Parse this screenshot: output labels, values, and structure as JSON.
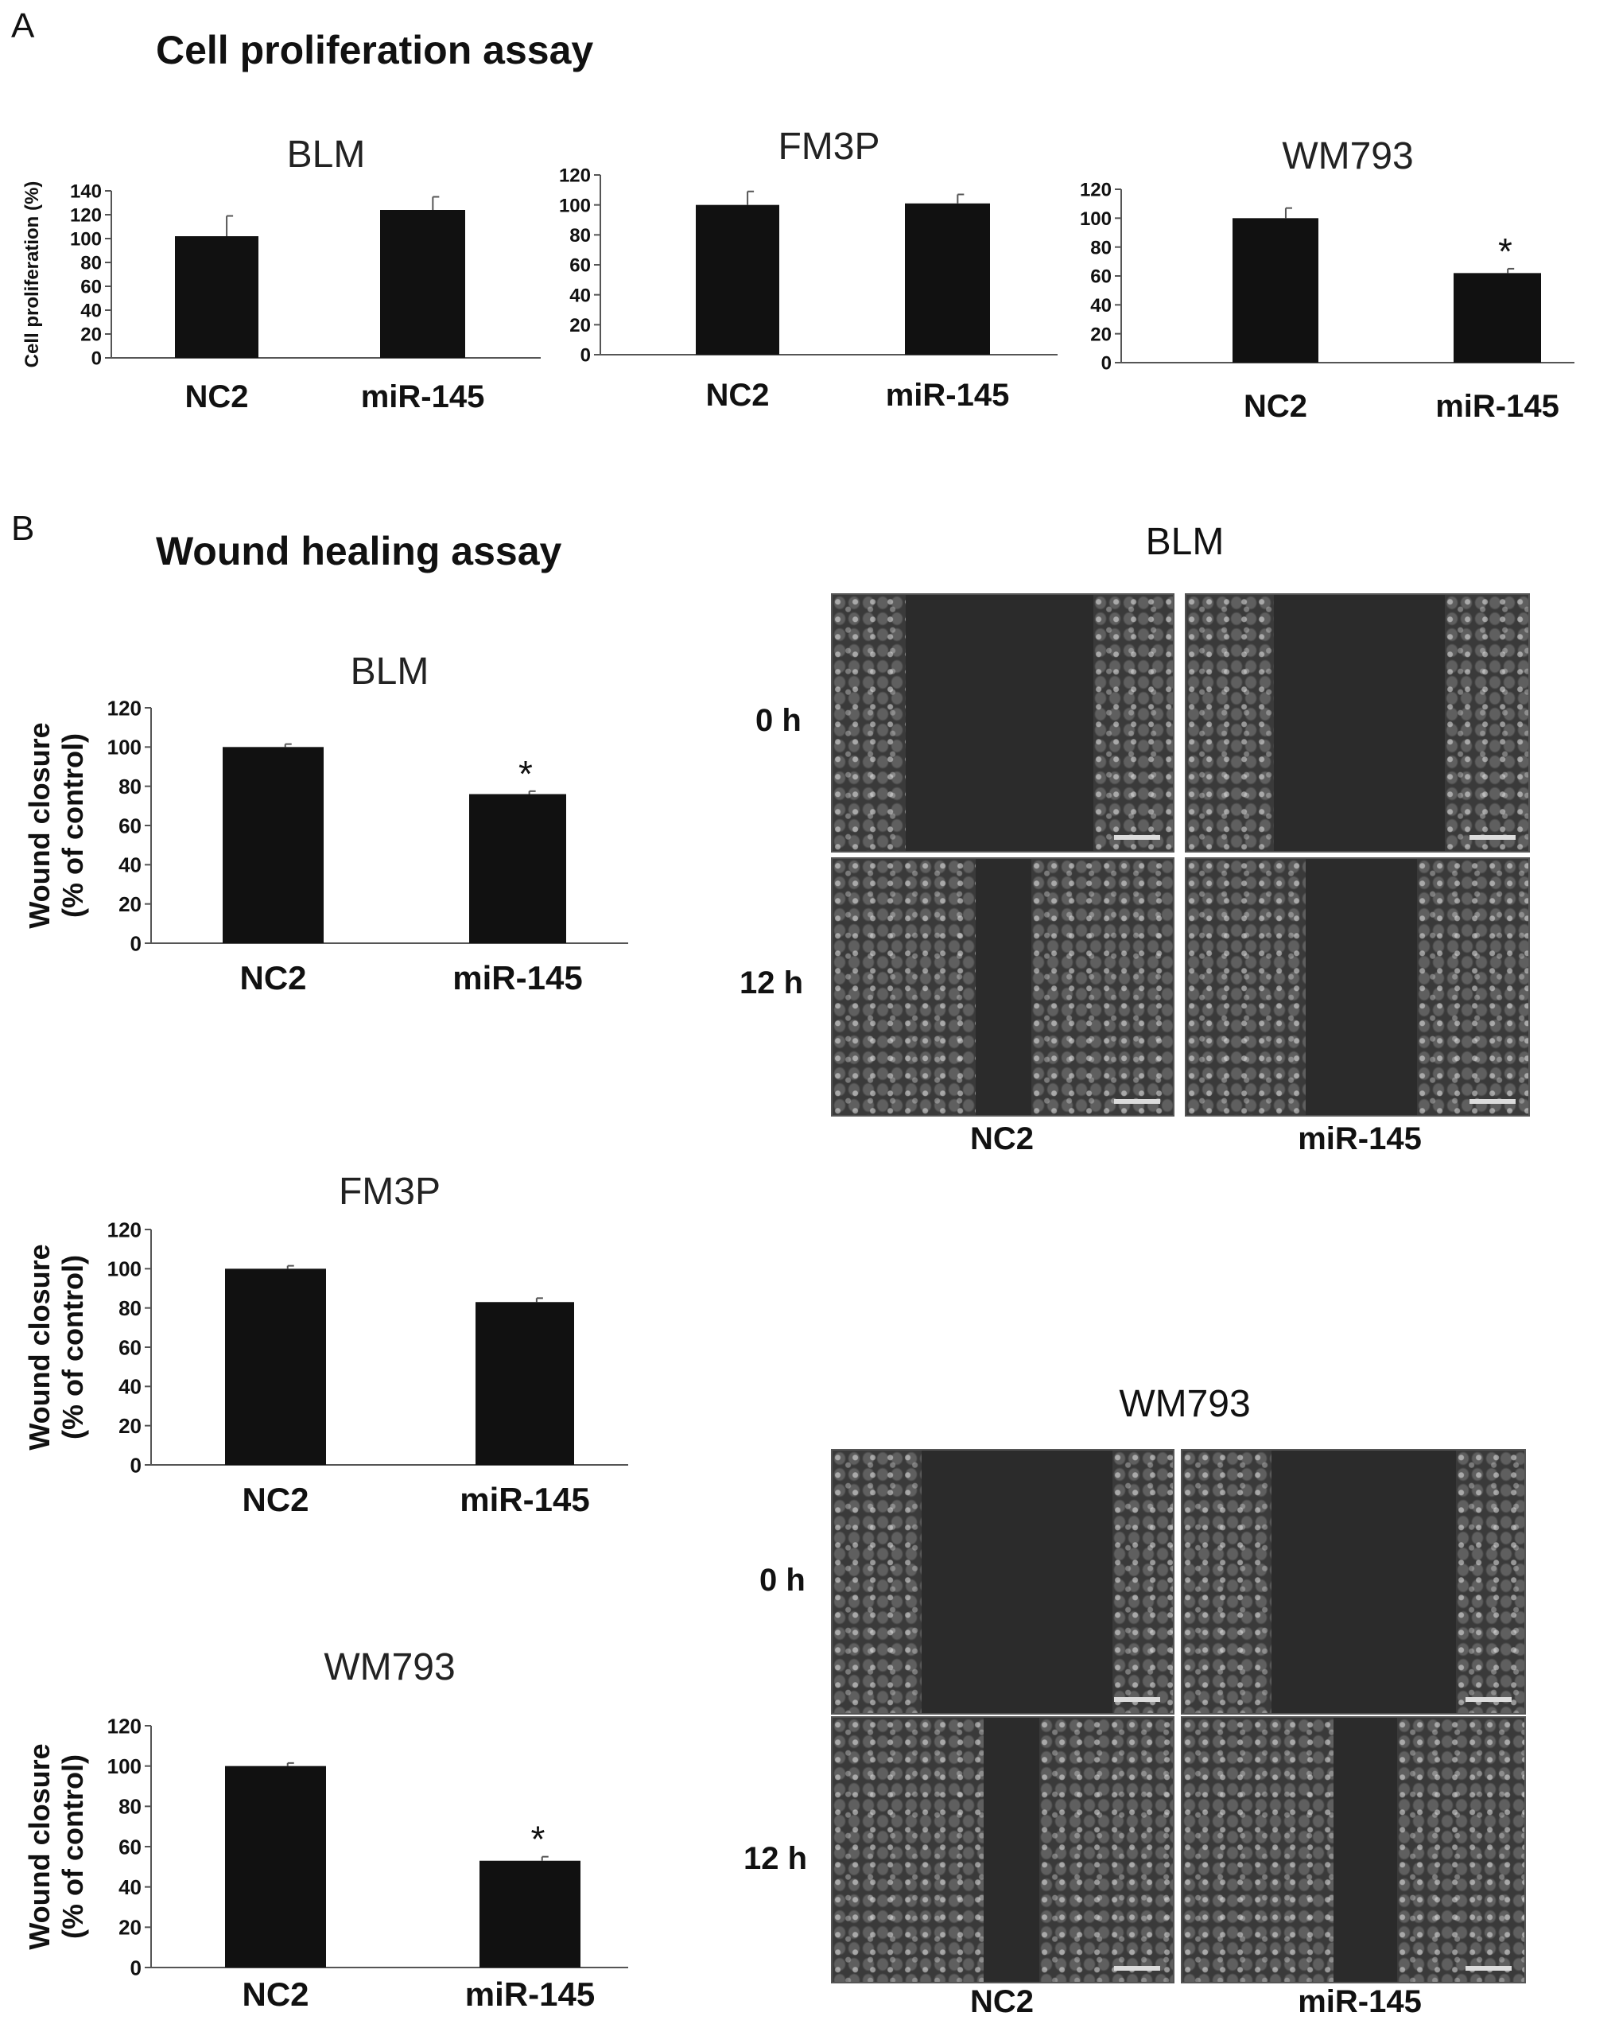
{
  "panel_a": {
    "letter": "A",
    "title": "Cell proliferation assay"
  },
  "panel_b": {
    "letter": "B",
    "title": "Wound healing assay"
  },
  "chart_data": [
    {
      "id": "prolif-blm",
      "type": "bar",
      "title": "BLM",
      "categories": [
        "NC2",
        "miR-145"
      ],
      "values": [
        102,
        124
      ],
      "errors": [
        17,
        11
      ],
      "ylabel": "Cell proliferation (%)",
      "ylim": [
        0,
        140
      ],
      "yticks": [
        0,
        20,
        40,
        60,
        80,
        100,
        120,
        140
      ],
      "significance": [
        "",
        ""
      ]
    },
    {
      "id": "prolif-fm3p",
      "type": "bar",
      "title": "FM3P",
      "categories": [
        "NC2",
        "miR-145"
      ],
      "values": [
        100,
        101
      ],
      "errors": [
        9,
        6
      ],
      "ylabel": "",
      "ylim": [
        0,
        120
      ],
      "yticks": [
        0,
        20,
        40,
        60,
        80,
        100,
        120
      ],
      "significance": [
        "",
        ""
      ]
    },
    {
      "id": "prolif-wm793",
      "type": "bar",
      "title": "WM793",
      "categories": [
        "NC2",
        "miR-145"
      ],
      "values": [
        100,
        62
      ],
      "errors": [
        7,
        3
      ],
      "ylabel": "",
      "ylim": [
        0,
        120
      ],
      "yticks": [
        0,
        20,
        40,
        60,
        80,
        100,
        120
      ],
      "significance": [
        "",
        "*"
      ]
    },
    {
      "id": "wound-blm",
      "type": "bar",
      "title": "BLM",
      "categories": [
        "NC2",
        "miR-145"
      ],
      "values": [
        100,
        76
      ],
      "errors": [
        1.5,
        1.5
      ],
      "ylabel": "Wound closure (% of control)",
      "ylabel_lines": [
        "Wound closure",
        "(% of control)"
      ],
      "ylim": [
        0,
        120
      ],
      "yticks": [
        0,
        20,
        40,
        60,
        80,
        100,
        120
      ],
      "significance": [
        "",
        "*"
      ]
    },
    {
      "id": "wound-fm3p",
      "type": "bar",
      "title": "FM3P",
      "categories": [
        "NC2",
        "miR-145"
      ],
      "values": [
        100,
        83
      ],
      "errors": [
        1.5,
        2
      ],
      "ylabel": "Wound closure (% of control)",
      "ylabel_lines": [
        "Wound closure",
        "(% of control)"
      ],
      "ylim": [
        0,
        120
      ],
      "yticks": [
        0,
        20,
        40,
        60,
        80,
        100,
        120
      ],
      "significance": [
        "",
        ""
      ]
    },
    {
      "id": "wound-wm793",
      "type": "bar",
      "title": "WM793",
      "categories": [
        "NC2",
        "miR-145"
      ],
      "values": [
        100,
        53
      ],
      "errors": [
        1.5,
        2
      ],
      "ylabel": "Wound closure (% of control)",
      "ylabel_lines": [
        "Wound closure",
        "(% of control)"
      ],
      "ylim": [
        0,
        120
      ],
      "yticks": [
        0,
        20,
        40,
        60,
        80,
        100,
        120
      ],
      "significance": [
        "",
        "*"
      ]
    }
  ],
  "micrographs": {
    "blm": {
      "title": "BLM",
      "rows": [
        "0 h",
        "12 h"
      ],
      "cols": [
        "NC2",
        "miR-145"
      ]
    },
    "wm793": {
      "title": "WM793",
      "rows": [
        "0 h",
        "12 h"
      ],
      "cols": [
        "NC2",
        "miR-145"
      ]
    }
  },
  "colors": {
    "bar": "#111111",
    "axis": "#555555"
  }
}
